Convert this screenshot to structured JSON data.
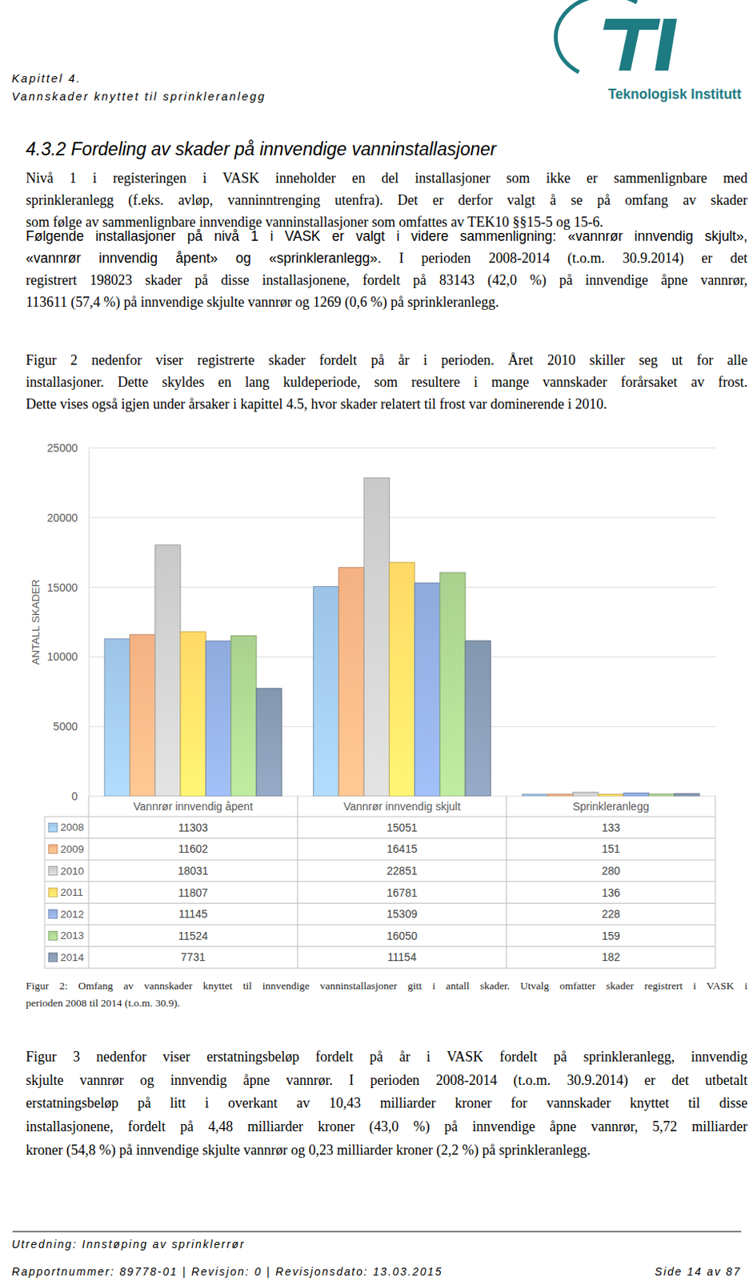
{
  "header": {
    "chapter": "Kapittel 4.",
    "title": "Vannskader knyttet til sprinkleranlegg",
    "logo_text": "Teknologisk Institutt"
  },
  "heading": "4.3.2 Fordeling av skader på innvendige vanninstallasjoner",
  "paragraphs": [
    {
      "lines": [
        "Nivå 1 i registeringen i VASK inneholder en del installasjoner som ikke er sammenlignbare med",
        "sprinkleranlegg (f.eks. avløp, vanninntrenging utenfra). Det er derfor valgt å se på omfang av skader",
        "som følge av sammenlignbare innvendige vanninstallasjoner som omfattes av TEK10 §§15-5 og 15-6."
      ]
    },
    {
      "lines": [
        [
          "Følgende installasjoner på nivå 1 i VASK er valgt i videre sammenligning: «vannrør innvendig skjult»,"
        ],
        [
          "«vannrør innvendig åpent» og «sprinkleranlegg».",
          "I perioden 2008-2014 (t.o.m. 30.9.2014) er det"
        ],
        "registrert 198023 skader på disse installasjonene, fordelt på 83143 (42,0 %) på innvendige åpne vannrør,",
        "113611 (57,4 %) på innvendige skjulte vannrør og 1269 (0,6 %) på sprinkleranlegg."
      ]
    },
    {
      "lines": [
        "Figur 2 nedenfor viser registrerte skader fordelt på år i perioden. Året 2010 skiller seg ut for alle",
        "installasjoner. Dette skyldes en lang kuldeperiode, som resultere i mange vannskader forårsaket av frost.",
        "Dette vises også igjen under årsaker i kapittel 4.5, hvor skader relatert til frost var dominerende i 2010."
      ]
    }
  ],
  "chart_data": {
    "type": "bar",
    "y_label": "ANTALL SKADER",
    "categories": [
      "Vannrør innvendig åpent",
      "Vannrør innvendig skjult",
      "Sprinkleranlegg"
    ],
    "series": [
      {
        "name": "2008",
        "color": "#9dc3e6",
        "values": [
          11303,
          15051,
          133
        ]
      },
      {
        "name": "2009",
        "color": "#f4b183",
        "values": [
          11602,
          16415,
          151
        ]
      },
      {
        "name": "2010",
        "color": "#c9c9c9",
        "values": [
          18031,
          22851,
          280
        ]
      },
      {
        "name": "2011",
        "color": "#ffd966",
        "values": [
          11807,
          16781,
          136
        ]
      },
      {
        "name": "2012",
        "color": "#8faadc",
        "values": [
          11145,
          15309,
          228
        ]
      },
      {
        "name": "2013",
        "color": "#a9d18e",
        "values": [
          11524,
          16050,
          159
        ]
      },
      {
        "name": "2014",
        "color": "#8497b0",
        "values": [
          7731,
          11154,
          182
        ]
      }
    ],
    "ylim": [
      0,
      25000
    ],
    "yticks": [
      0,
      5000,
      10000,
      15000,
      20000,
      25000
    ],
    "grid": true
  },
  "caption": {
    "lines": [
      "Figur 2: Omfang av vannskader knyttet til innvendige vanninstallasjoner gitt i antall skader. Utvalg omfatter skader registrert i VASK i",
      "perioden 2008 til 2014 (t.o.m. 30.9)."
    ]
  },
  "paragraphs_after": [
    {
      "lines": [
        "Figur 3 nedenfor viser erstatningsbeløp fordelt på år i VASK fordelt på sprinkleranlegg, innvendig",
        "skjulte vannrør og innvendig åpne vannrør. I perioden 2008-2014 (t.o.m. 30.9.2014) er det utbetalt",
        "erstatningsbeløp på litt i overkant av 10,43 milliarder kroner for vannskader knyttet til disse",
        "installasjonene, fordelt på 4,48 milliarder kroner (43,0 %) på innvendige åpne vannrør, 5,72 milliarder",
        "kroner (54,8 %) på innvendige skjulte vannrør og 0,23 milliarder kroner (2,2 %) på sprinkleranlegg."
      ]
    }
  ],
  "footer": {
    "report": "Utredning: Innstøping av sprinklerrør",
    "meta": "Rapportnummer: 89778-01 | Revisjon: 0 | Revisjonsdato: 13.03.2015",
    "page": "Side 14 av 87"
  }
}
